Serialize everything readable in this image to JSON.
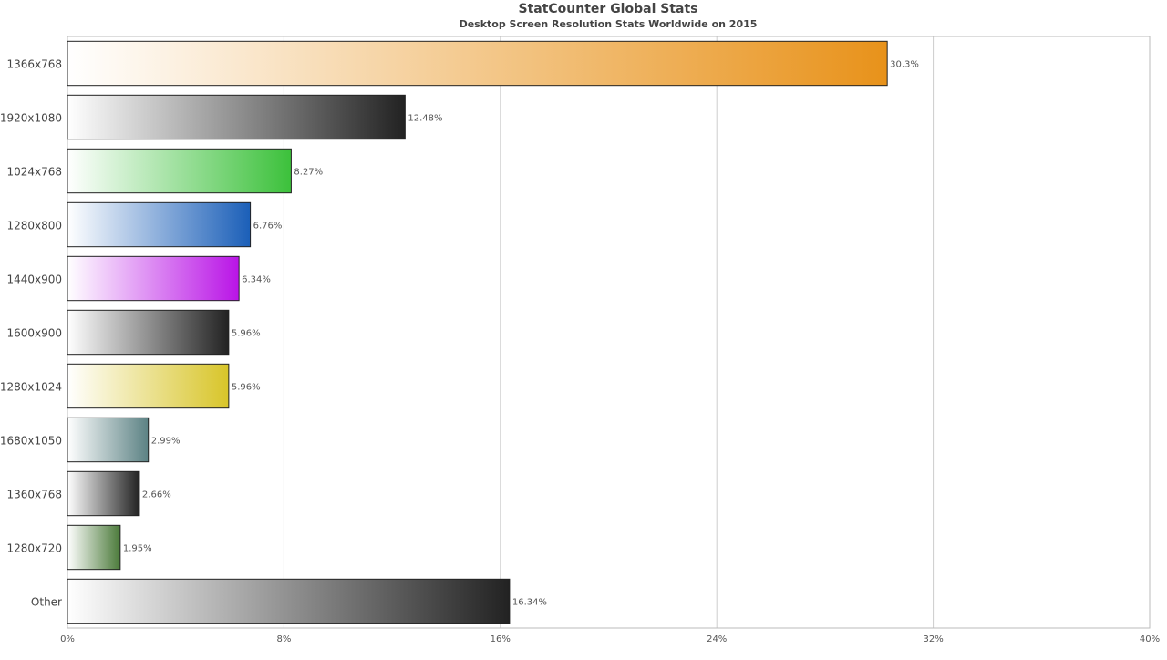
{
  "chart_data": {
    "type": "bar",
    "orientation": "horizontal",
    "title": "StatCounter Global Stats",
    "subtitle": "Desktop Screen Resolution Stats Worldwide on 2015",
    "xlabel": "",
    "ylabel": "",
    "xlim": [
      0,
      40
    ],
    "x_ticks": [
      "0%",
      "8%",
      "16%",
      "24%",
      "32%",
      "40%"
    ],
    "x_tick_values": [
      0,
      8,
      16,
      24,
      32,
      40
    ],
    "grid": true,
    "categories": [
      "1366x768",
      "1920x1080",
      "1024x768",
      "1280x800",
      "1440x900",
      "1600x900",
      "1280x1024",
      "1680x1050",
      "1360x768",
      "1280x720",
      "Other"
    ],
    "values": [
      30.3,
      12.48,
      8.27,
      6.76,
      6.34,
      5.96,
      5.96,
      2.99,
      2.66,
      1.95,
      16.34
    ],
    "value_labels": [
      "30.3%",
      "12.48%",
      "8.27%",
      "6.76%",
      "6.34%",
      "5.96%",
      "5.96%",
      "2.99%",
      "2.66%",
      "1.95%",
      "16.34%"
    ],
    "colors": [
      "#e8921a",
      "#222222",
      "#3cc13b",
      "#1b5fb8",
      "#b914e6",
      "#222222",
      "#d8c529",
      "#5c8284",
      "#222222",
      "#4b7a3a",
      "#222222"
    ]
  }
}
